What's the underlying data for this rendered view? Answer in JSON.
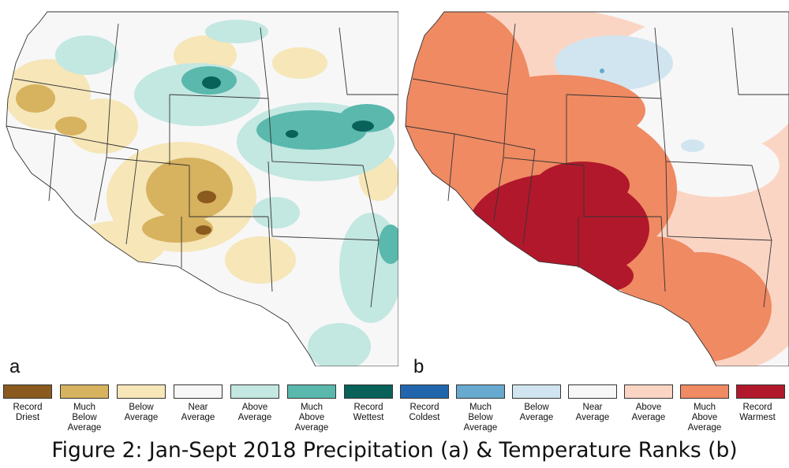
{
  "panels": [
    {
      "label": "a",
      "variable": "precipitation"
    },
    {
      "label": "b",
      "variable": "temperature"
    }
  ],
  "precip_legend": [
    {
      "label": "Record\nDriest",
      "color": "#8a5a1f"
    },
    {
      "label": "Much\nBelow\nAverage",
      "color": "#d7b25f"
    },
    {
      "label": "Below\nAverage",
      "color": "#f6e6b8"
    },
    {
      "label": "Near\nAverage",
      "color": "#f7f7f7"
    },
    {
      "label": "Above\nAverage",
      "color": "#c3e7e1"
    },
    {
      "label": "Much\nAbove\nAverage",
      "color": "#5ab8ad"
    },
    {
      "label": "Record\nWettest",
      "color": "#08625a"
    }
  ],
  "temp_legend": [
    {
      "label": "Record\nColdest",
      "color": "#2166ac"
    },
    {
      "label": "Much\nBelow\nAverage",
      "color": "#67a9cf"
    },
    {
      "label": "Below\nAverage",
      "color": "#d1e5f0"
    },
    {
      "label": "Near\nAverage",
      "color": "#f7f7f7"
    },
    {
      "label": "Above\nAverage",
      "color": "#fbd5c4"
    },
    {
      "label": "Much\nAbove\nAverage",
      "color": "#ef8a62"
    },
    {
      "label": "Record\nWarmest",
      "color": "#b2182b"
    }
  ],
  "caption": "Figure 2: Jan-Sept 2018 Precipitation (a) & Temperature Ranks (b)"
}
